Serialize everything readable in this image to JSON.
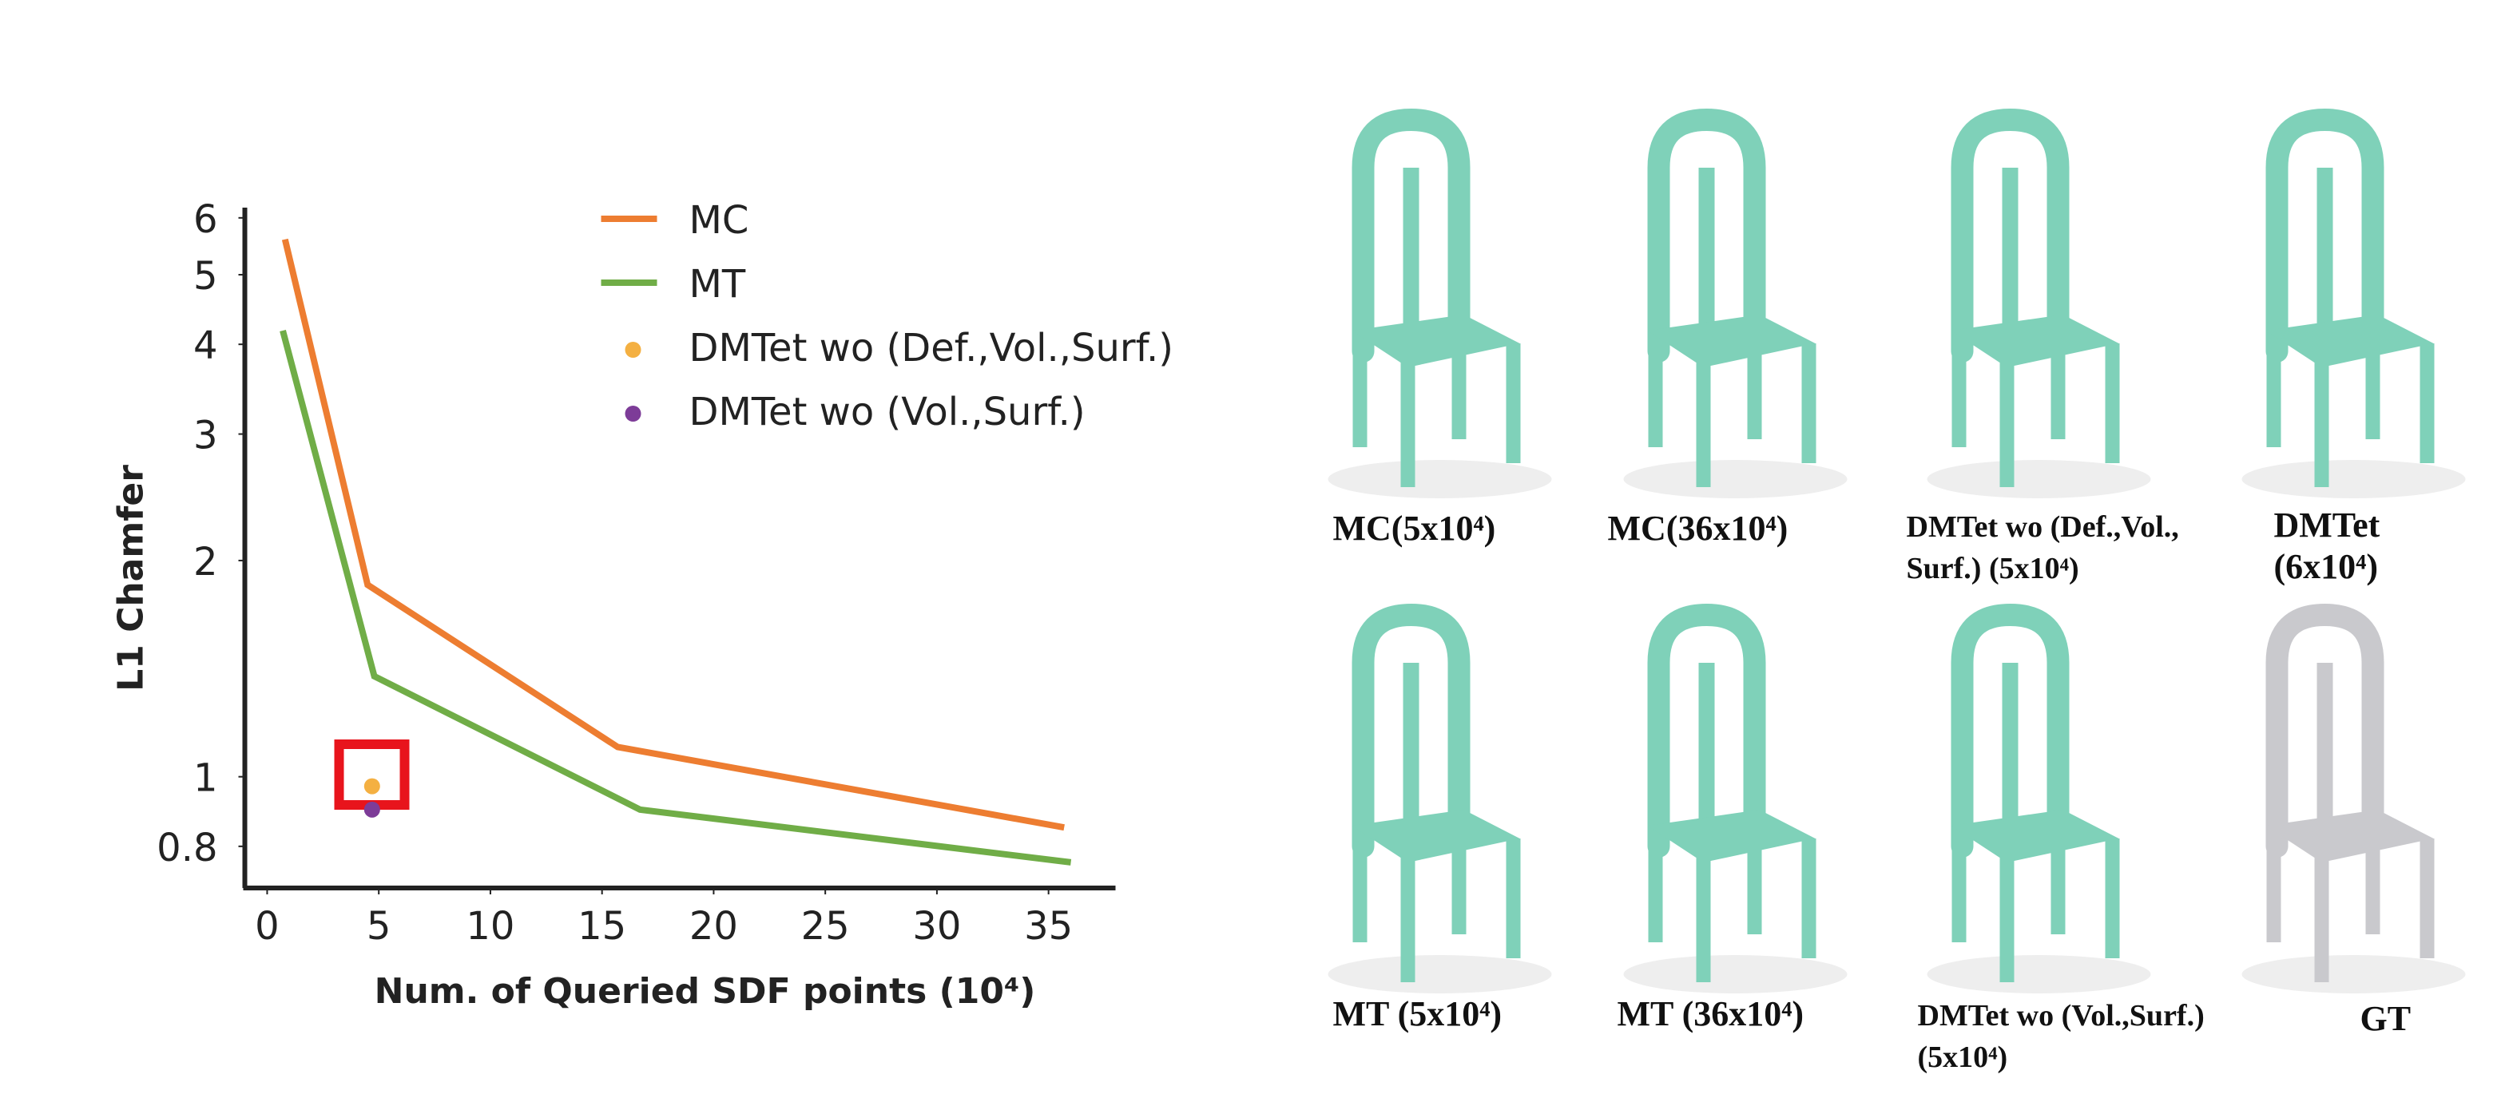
{
  "chart_data": {
    "type": "line",
    "x_label": "Num. of Queried SDF points (10⁴)",
    "y_label": "L1 Chamfer",
    "xlim": [
      -1,
      38
    ],
    "xticks": [
      0,
      5,
      10,
      15,
      20,
      25,
      30,
      35
    ],
    "ylim": [
      0.7,
      6.2
    ],
    "yticks": [
      0.8,
      1,
      2,
      3,
      4,
      5,
      6
    ],
    "y_scale": "log",
    "series": [
      {
        "name": "MC",
        "color": "#ed7d31",
        "kind": "line",
        "x": [
          0.8,
          4.5,
          15.7,
          35.7
        ],
        "values": [
          5.6,
          1.85,
          1.1,
          0.85
        ]
      },
      {
        "name": "MT",
        "color": "#70ad47",
        "kind": "line",
        "x": [
          0.7,
          4.8,
          16.7,
          36
        ],
        "values": [
          4.18,
          1.38,
          0.9,
          0.76
        ]
      },
      {
        "name": "DMTet wo (Def.,Vol.,Surf.)",
        "color": "#f4b042",
        "kind": "scatter",
        "x": [
          4.7
        ],
        "values": [
          0.97
        ]
      },
      {
        "name": "DMTet wo (Vol.,Surf.)",
        "color": "#7d3c98",
        "kind": "scatter",
        "x": [
          4.7
        ],
        "values": [
          0.9
        ]
      }
    ]
  },
  "gallery": {
    "captions": [
      [
        "MC(5x10⁴)"
      ],
      [
        "MC(36x10⁴)"
      ],
      [
        "DMTet wo (Def.,Vol.,",
        "Surf.) (5x10⁴)"
      ],
      [
        "DMTet",
        "(6x10⁴)"
      ],
      [
        "MT (5x10⁴)"
      ],
      [
        "MT (36x10⁴)"
      ],
      [
        "DMTet wo (Vol.,Surf.)",
        "(5x10⁴)"
      ],
      [
        "GT"
      ]
    ]
  }
}
